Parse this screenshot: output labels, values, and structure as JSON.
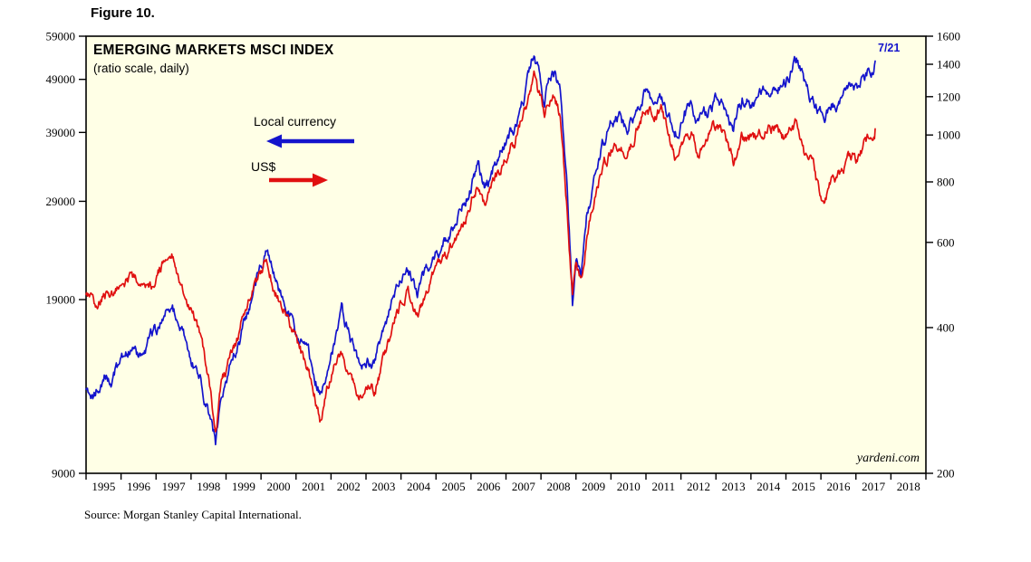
{
  "figure_label": "Figure 10.",
  "title": "EMERGING MARKETS MSCI INDEX",
  "subtitle": "(ratio scale, daily)",
  "annotation": "7/21",
  "watermark": "yardeni.com",
  "source": "Source: Morgan Stanley Capital International.",
  "legend": {
    "local_currency": "Local currency",
    "usd": "US$"
  },
  "colors": {
    "local_currency": "#1414cc",
    "usd": "#e01010",
    "plot_bg": "#ffffe6",
    "frame": "#000000"
  },
  "chart_data": {
    "type": "line",
    "title": "EMERGING MARKETS MSCI INDEX",
    "subtitle": "(ratio scale, daily)",
    "scale": "log",
    "grid": "off",
    "legend_position": "inside-top-left",
    "x_axis": {
      "min": 1995,
      "max": 2019,
      "year_labels": [
        "1995",
        "1996",
        "1997",
        "1998",
        "1999",
        "2000",
        "2001",
        "2002",
        "2003",
        "2004",
        "2005",
        "2006",
        "2007",
        "2008",
        "2009",
        "2010",
        "2011",
        "2012",
        "2013",
        "2014",
        "2015",
        "2016",
        "2017",
        "2018"
      ]
    },
    "left_axis": {
      "series": "Local currency",
      "min": 9000,
      "max": 59000,
      "ticks": [
        59000,
        49000,
        39000,
        29000,
        19000,
        9000
      ]
    },
    "right_axis": {
      "series": "US$",
      "min": 200,
      "max": 1600,
      "ticks": [
        1600,
        1400,
        1200,
        1000,
        800,
        600,
        400,
        200
      ]
    },
    "last_point_label": "7/21",
    "x": [
      1995.0,
      1995.25,
      1995.5,
      1995.75,
      1996.0,
      1996.25,
      1996.5,
      1996.75,
      1997.0,
      1997.25,
      1997.45,
      1997.7,
      1997.9,
      1998.1,
      1998.3,
      1998.55,
      1998.7,
      1998.85,
      1999.0,
      1999.25,
      1999.5,
      1999.75,
      2000.0,
      2000.15,
      2000.4,
      2000.65,
      2000.9,
      2001.1,
      2001.35,
      2001.7,
      2001.9,
      2002.1,
      2002.3,
      2002.55,
      2002.8,
      2003.0,
      2003.25,
      2003.5,
      2003.75,
      2004.0,
      2004.2,
      2004.45,
      2004.7,
      2005.0,
      2005.25,
      2005.5,
      2005.75,
      2006.0,
      2006.2,
      2006.4,
      2006.7,
      2007.0,
      2007.25,
      2007.5,
      2007.8,
      2007.95,
      2008.1,
      2008.2,
      2008.4,
      2008.55,
      2008.75,
      2008.9,
      2009.0,
      2009.15,
      2009.3,
      2009.5,
      2009.75,
      2010.0,
      2010.25,
      2010.45,
      2010.7,
      2011.0,
      2011.2,
      2011.45,
      2011.7,
      2011.9,
      2012.1,
      2012.3,
      2012.5,
      2012.75,
      2013.0,
      2013.25,
      2013.5,
      2013.75,
      2014.0,
      2014.25,
      2014.5,
      2014.75,
      2015.0,
      2015.3,
      2015.55,
      2015.8,
      2016.05,
      2016.3,
      2016.55,
      2016.8,
      2017.0,
      2017.25,
      2017.55
    ],
    "series": [
      {
        "name": "Local currency",
        "axis": "left",
        "color": "#1414cc",
        "values": [
          13200,
          12700,
          13900,
          13600,
          14600,
          15300,
          15000,
          15800,
          16500,
          18200,
          18800,
          16800,
          15500,
          14300,
          13200,
          11200,
          10200,
          12000,
          13500,
          15200,
          16800,
          19000,
          22000,
          23000,
          20500,
          18800,
          17200,
          16000,
          15000,
          12700,
          14500,
          16000,
          18300,
          16000,
          14000,
          14800,
          14400,
          16800,
          19000,
          20500,
          21500,
          19300,
          21500,
          23500,
          24500,
          26000,
          28500,
          31000,
          33500,
          30500,
          34000,
          37500,
          40000,
          44500,
          54500,
          50000,
          45500,
          48000,
          50500,
          45500,
          30000,
          19000,
          22500,
          20500,
          26500,
          31500,
          37000,
          40000,
          41500,
          39500,
          43000,
          47500,
          45500,
          47000,
          40500,
          39000,
          42500,
          43500,
          41000,
          43000,
          45000,
          43500,
          39500,
          44500,
          44500,
          46000,
          47500,
          48000,
          48500,
          53500,
          47500,
          45000,
          41000,
          44000,
          45000,
          46500,
          46500,
          49500,
          53000
        ]
      },
      {
        "name": "US$",
        "axis": "right",
        "color": "#e01010",
        "values": [
          470,
          445,
          480,
          468,
          480,
          505,
          488,
          478,
          505,
          550,
          570,
          490,
          430,
          410,
          375,
          300,
          248,
          300,
          320,
          365,
          420,
          470,
          520,
          545,
          480,
          440,
          395,
          360,
          325,
          260,
          305,
          330,
          355,
          310,
          285,
          300,
          295,
          340,
          400,
          450,
          480,
          420,
          475,
          540,
          555,
          590,
          650,
          730,
          800,
          710,
          810,
          900,
          970,
          1090,
          1300,
          1200,
          1100,
          1160,
          1230,
          1100,
          700,
          455,
          530,
          490,
          610,
          730,
          860,
          930,
          970,
          900,
          1010,
          1150,
          1090,
          1130,
          950,
          890,
          980,
          1020,
          930,
          990,
          1050,
          1000,
          880,
          990,
          960,
          1000,
          1060,
          1030,
          980,
          1060,
          900,
          850,
          700,
          800,
          840,
          900,
          890,
          960,
          1030
        ]
      }
    ]
  }
}
